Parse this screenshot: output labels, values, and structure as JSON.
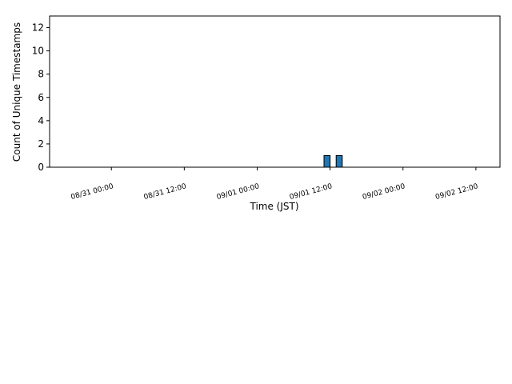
{
  "chart_data": {
    "type": "histogram",
    "xlabel": "Time (JST)",
    "ylabel": "Count of Unique Timestamps",
    "bins": [
      "08/30 15:00",
      "08/30 16:00",
      "08/30 17:00",
      "08/30 18:00",
      "08/30 19:00",
      "08/30 20:00",
      "08/30 21:00",
      "08/30 22:00",
      "08/30 23:00",
      "08/31 00:00",
      "08/31 01:00",
      "08/31 02:00",
      "08/31 03:00",
      "08/31 04:00",
      "08/31 05:00",
      "08/31 06:00",
      "08/31 07:00",
      "08/31 08:00",
      "08/31 09:00",
      "08/31 10:00",
      "08/31 11:00",
      "08/31 12:00",
      "08/31 13:00",
      "08/31 14:00",
      "08/31 15:00",
      "08/31 16:00",
      "08/31 17:00",
      "08/31 18:00",
      "08/31 19:00",
      "08/31 20:00",
      "08/31 21:00",
      "08/31 22:00",
      "08/31 23:00",
      "09/01 00:00",
      "09/01 01:00",
      "09/01 02:00",
      "09/01 03:00",
      "09/01 04:00",
      "09/01 05:00",
      "09/01 06:00",
      "09/01 07:00",
      "09/01 08:00",
      "09/01 09:00",
      "09/01 10:00",
      "09/01 11:00",
      "09/01 12:00",
      "09/01 13:00",
      "09/01 14:00",
      "09/01 15:00",
      "09/01 16:00",
      "09/01 17:00",
      "09/01 18:00",
      "09/01 19:00",
      "09/01 20:00",
      "09/01 21:00",
      "09/01 22:00",
      "09/01 23:00",
      "09/02 00:00",
      "09/02 01:00",
      "09/02 02:00",
      "09/02 03:00",
      "09/02 04:00",
      "09/02 05:00",
      "09/02 06:00",
      "09/02 07:00",
      "09/02 08:00",
      "09/02 09:00",
      "09/02 10:00",
      "09/02 11:00",
      "09/02 12:00",
      "09/02 13:00",
      "09/02 14:00"
    ],
    "counts": [
      0,
      0,
      0,
      0,
      0,
      0,
      0,
      0,
      0,
      0,
      0,
      0,
      0,
      0,
      0,
      0,
      0,
      0,
      0,
      0,
      0,
      0,
      0,
      0,
      0,
      0,
      0,
      0,
      0,
      0,
      0,
      0,
      0,
      0,
      0,
      0,
      0,
      0,
      0,
      0,
      0,
      0,
      0,
      0,
      1,
      0,
      1,
      0,
      0,
      0,
      0,
      0,
      0,
      0,
      0,
      0,
      0,
      0,
      0,
      0,
      0,
      0,
      0,
      0,
      0,
      0,
      0,
      0,
      0,
      0,
      0
    ],
    "color": "#1f77b4",
    "xlim": [
      "08/30 13:50",
      "09/02 15:58"
    ],
    "xticks": [
      "08/31 00:00",
      "08/31 12:00",
      "09/01 00:00",
      "09/01 12:00",
      "09/02 00:00",
      "09/02 12:00"
    ],
    "ylim": [
      0,
      13
    ],
    "yticks": [
      0,
      2,
      4,
      6,
      8,
      10,
      12
    ],
    "grid": false
  }
}
